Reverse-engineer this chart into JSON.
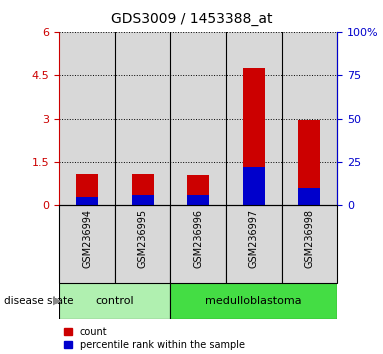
{
  "title": "GDS3009 / 1453388_at",
  "samples": [
    "GSM236994",
    "GSM236995",
    "GSM236996",
    "GSM236997",
    "GSM236998"
  ],
  "count_values": [
    1.1,
    1.1,
    1.05,
    4.75,
    2.95
  ],
  "percentile_values_pct": [
    5.0,
    6.0,
    6.0,
    22.0,
    10.0
  ],
  "left_ylim": [
    0,
    6
  ],
  "left_yticks": [
    0,
    1.5,
    3.0,
    4.5,
    6
  ],
  "left_yticklabels": [
    "0",
    "1.5",
    "3",
    "4.5",
    "6"
  ],
  "right_ylim": [
    0,
    100
  ],
  "right_yticks": [
    0,
    25,
    50,
    75,
    100
  ],
  "right_yticklabels": [
    "0",
    "25",
    "50",
    "75",
    "100%"
  ],
  "bar_width": 0.4,
  "count_color": "#cc0000",
  "percentile_color": "#0000cc",
  "group_control_color": "#b0f0b0",
  "group_med_color": "#44dd44",
  "cell_bg_color": "#d8d8d8",
  "plot_bg": "#ffffff",
  "disease_state_label": "disease state",
  "legend_count_label": "count",
  "legend_percentile_label": "percentile rank within the sample"
}
